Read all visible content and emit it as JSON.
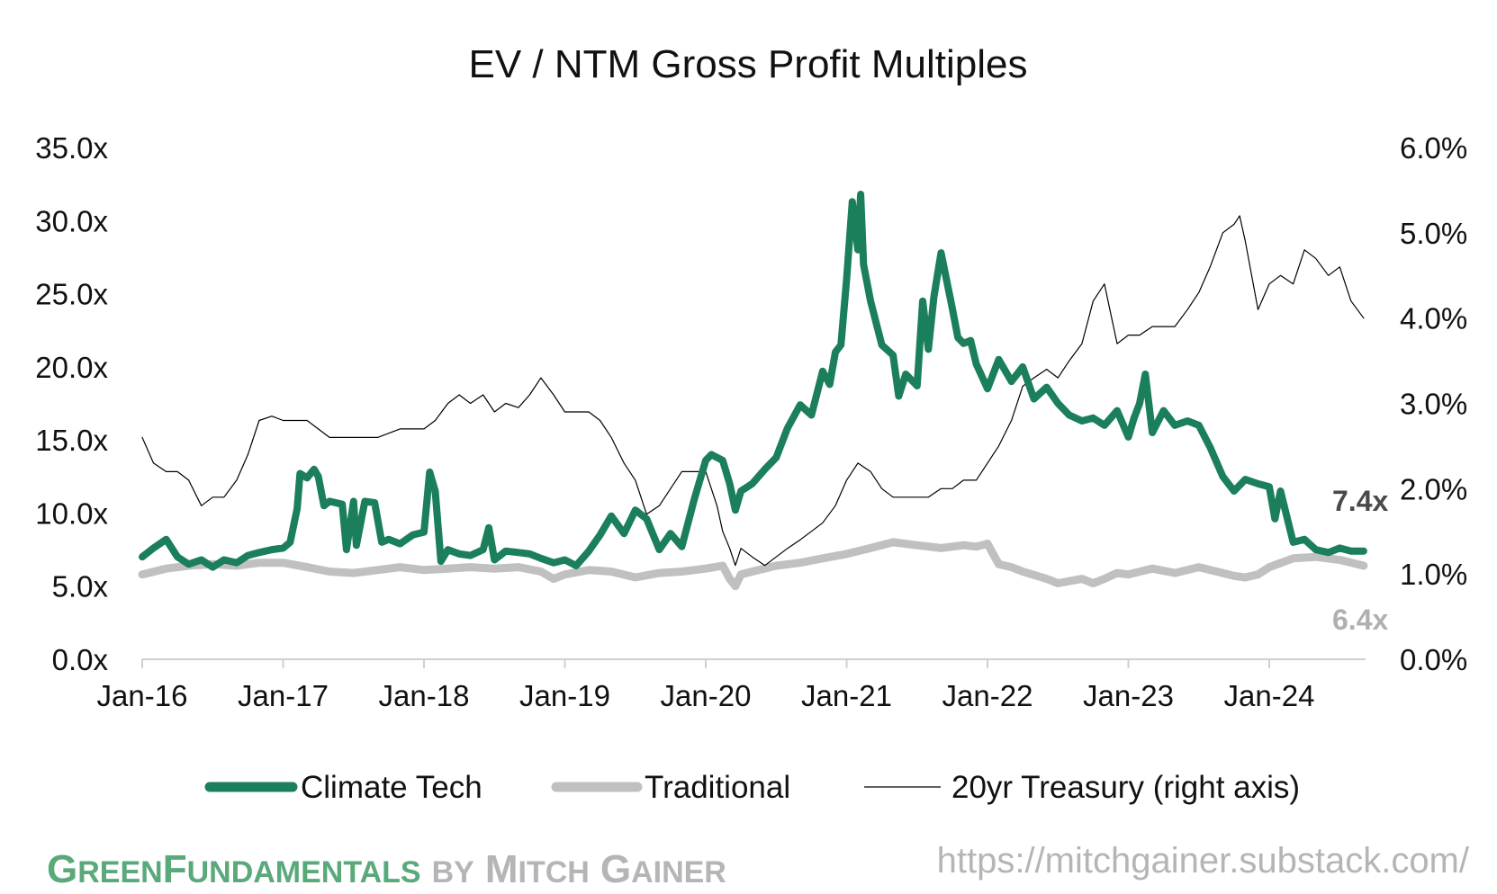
{
  "chart_data": {
    "type": "line",
    "title": "EV / NTM Gross Profit Multiples",
    "x_tick_labels": [
      "Jan-16",
      "Jan-17",
      "Jan-18",
      "Jan-19",
      "Jan-20",
      "Jan-21",
      "Jan-22",
      "Jan-23",
      "Jan-24"
    ],
    "x_range": [
      2016.0,
      2024.67
    ],
    "y_left": {
      "range": [
        0,
        35
      ],
      "tick_values": [
        0,
        5,
        10,
        15,
        20,
        25,
        30,
        35
      ],
      "tick_labels": [
        "0.0x",
        "5.0x",
        "10.0x",
        "15.0x",
        "20.0x",
        "25.0x",
        "30.0x",
        "35.0x"
      ]
    },
    "y_right": {
      "range": [
        0,
        6
      ],
      "tick_values": [
        0,
        1,
        2,
        3,
        4,
        5,
        6
      ],
      "tick_labels": [
        "0.0%",
        "1.0%",
        "2.0%",
        "3.0%",
        "4.0%",
        "5.0%",
        "6.0%"
      ]
    },
    "series": [
      {
        "name": "Climate Tech",
        "axis": "left",
        "color": "#1a7f5a",
        "end_label": "7.4x",
        "x": [
          2016.0,
          2016.08,
          2016.17,
          2016.25,
          2016.33,
          2016.42,
          2016.5,
          2016.58,
          2016.67,
          2016.75,
          2016.83,
          2016.92,
          2017.0,
          2017.05,
          2017.1,
          2017.12,
          2017.17,
          2017.22,
          2017.25,
          2017.29,
          2017.33,
          2017.42,
          2017.45,
          2017.5,
          2017.52,
          2017.58,
          2017.65,
          2017.7,
          2017.75,
          2017.83,
          2017.92,
          2018.0,
          2018.04,
          2018.08,
          2018.12,
          2018.17,
          2018.25,
          2018.33,
          2018.42,
          2018.46,
          2018.5,
          2018.58,
          2018.67,
          2018.75,
          2018.83,
          2018.92,
          2019.0,
          2019.08,
          2019.17,
          2019.25,
          2019.33,
          2019.42,
          2019.5,
          2019.58,
          2019.67,
          2019.75,
          2019.83,
          2019.92,
          2020.0,
          2020.04,
          2020.12,
          2020.17,
          2020.21,
          2020.25,
          2020.33,
          2020.42,
          2020.5,
          2020.58,
          2020.67,
          2020.75,
          2020.83,
          2020.88,
          2020.92,
          2020.96,
          2021.0,
          2021.04,
          2021.08,
          2021.1,
          2021.12,
          2021.17,
          2021.25,
          2021.33,
          2021.37,
          2021.42,
          2021.5,
          2021.54,
          2021.58,
          2021.62,
          2021.67,
          2021.75,
          2021.79,
          2021.83,
          2021.88,
          2021.92,
          2022.0,
          2022.08,
          2022.17,
          2022.25,
          2022.33,
          2022.42,
          2022.5,
          2022.58,
          2022.67,
          2022.75,
          2022.83,
          2022.92,
          2023.0,
          2023.04,
          2023.08,
          2023.12,
          2023.17,
          2023.25,
          2023.33,
          2023.42,
          2023.5,
          2023.58,
          2023.67,
          2023.75,
          2023.83,
          2023.92,
          2024.0,
          2024.04,
          2024.08,
          2024.17,
          2024.25,
          2024.33,
          2024.42,
          2024.5,
          2024.58,
          2024.67
        ],
        "y": [
          7.0,
          7.6,
          8.2,
          7.0,
          6.5,
          6.8,
          6.3,
          6.8,
          6.6,
          7.1,
          7.3,
          7.5,
          7.6,
          8.0,
          10.3,
          12.7,
          12.4,
          13.0,
          12.5,
          10.5,
          10.8,
          10.6,
          7.5,
          10.8,
          7.8,
          10.8,
          10.7,
          8.0,
          8.2,
          7.9,
          8.5,
          8.7,
          12.8,
          11.5,
          6.7,
          7.5,
          7.2,
          7.1,
          7.5,
          9.0,
          6.8,
          7.4,
          7.3,
          7.2,
          6.9,
          6.6,
          6.8,
          6.4,
          7.4,
          8.5,
          9.8,
          8.6,
          10.2,
          9.6,
          7.5,
          8.6,
          7.7,
          11.0,
          13.6,
          14.0,
          13.6,
          12.0,
          10.2,
          11.5,
          12.0,
          13.0,
          13.8,
          15.8,
          17.4,
          16.7,
          19.7,
          18.8,
          21.0,
          21.5,
          26.0,
          31.3,
          28.0,
          31.8,
          27.0,
          24.5,
          21.5,
          20.8,
          18.0,
          19.5,
          18.7,
          24.5,
          21.2,
          24.8,
          27.8,
          24.0,
          22.0,
          21.6,
          21.8,
          20.2,
          18.5,
          20.5,
          19.0,
          20.0,
          17.8,
          18.6,
          17.5,
          16.7,
          16.3,
          16.5,
          16.0,
          17.0,
          15.2,
          16.5,
          17.5,
          19.5,
          15.5,
          17.0,
          16.0,
          16.3,
          16.0,
          14.5,
          12.5,
          11.5,
          12.3,
          12.0,
          11.8,
          9.6,
          11.5,
          8.0,
          8.2,
          7.5,
          7.3,
          7.6,
          7.4,
          7.4
        ]
      },
      {
        "name": "Traditional",
        "axis": "left",
        "color": "#c0c0c0",
        "end_label": "6.4x",
        "x": [
          2016.0,
          2016.17,
          2016.33,
          2016.5,
          2016.67,
          2016.83,
          2017.0,
          2017.17,
          2017.33,
          2017.5,
          2017.67,
          2017.83,
          2018.0,
          2018.17,
          2018.33,
          2018.5,
          2018.67,
          2018.83,
          2018.92,
          2019.0,
          2019.17,
          2019.33,
          2019.5,
          2019.67,
          2019.83,
          2020.0,
          2020.12,
          2020.17,
          2020.21,
          2020.25,
          2020.33,
          2020.5,
          2020.67,
          2020.83,
          2021.0,
          2021.17,
          2021.33,
          2021.5,
          2021.67,
          2021.83,
          2021.92,
          2022.0,
          2022.08,
          2022.17,
          2022.25,
          2022.42,
          2022.5,
          2022.67,
          2022.75,
          2022.83,
          2022.92,
          2023.0,
          2023.17,
          2023.33,
          2023.5,
          2023.67,
          2023.75,
          2023.83,
          2023.92,
          2024.0,
          2024.17,
          2024.33,
          2024.5,
          2024.67
        ],
        "y": [
          5.8,
          6.2,
          6.4,
          6.5,
          6.4,
          6.6,
          6.6,
          6.3,
          6.0,
          5.9,
          6.1,
          6.3,
          6.1,
          6.2,
          6.3,
          6.2,
          6.3,
          6.0,
          5.5,
          5.8,
          6.1,
          6.0,
          5.6,
          5.9,
          6.0,
          6.2,
          6.4,
          5.5,
          5.0,
          5.8,
          6.0,
          6.4,
          6.6,
          6.9,
          7.2,
          7.6,
          8.0,
          7.8,
          7.6,
          7.8,
          7.7,
          7.9,
          6.5,
          6.3,
          6.0,
          5.5,
          5.2,
          5.5,
          5.2,
          5.5,
          5.9,
          5.8,
          6.2,
          5.9,
          6.3,
          5.9,
          5.7,
          5.6,
          5.8,
          6.3,
          6.9,
          7.0,
          6.8,
          6.4
        ]
      },
      {
        "name": "20yr Treasury (right axis)",
        "axis": "right",
        "color": "#000000",
        "x": [
          2016.0,
          2016.08,
          2016.17,
          2016.25,
          2016.33,
          2016.42,
          2016.5,
          2016.58,
          2016.67,
          2016.75,
          2016.83,
          2016.92,
          2017.0,
          2017.17,
          2017.33,
          2017.5,
          2017.67,
          2017.83,
          2018.0,
          2018.08,
          2018.17,
          2018.25,
          2018.33,
          2018.42,
          2018.5,
          2018.58,
          2018.67,
          2018.75,
          2018.83,
          2018.92,
          2019.0,
          2019.08,
          2019.17,
          2019.25,
          2019.33,
          2019.42,
          2019.5,
          2019.58,
          2019.67,
          2019.75,
          2019.83,
          2019.92,
          2020.0,
          2020.08,
          2020.12,
          2020.17,
          2020.21,
          2020.25,
          2020.33,
          2020.42,
          2020.5,
          2020.58,
          2020.67,
          2020.75,
          2020.83,
          2020.92,
          2021.0,
          2021.08,
          2021.17,
          2021.25,
          2021.33,
          2021.42,
          2021.5,
          2021.58,
          2021.67,
          2021.75,
          2021.83,
          2021.92,
          2022.0,
          2022.08,
          2022.17,
          2022.25,
          2022.33,
          2022.42,
          2022.5,
          2022.58,
          2022.67,
          2022.75,
          2022.83,
          2022.92,
          2023.0,
          2023.08,
          2023.17,
          2023.25,
          2023.33,
          2023.42,
          2023.5,
          2023.58,
          2023.67,
          2023.75,
          2023.79,
          2023.83,
          2023.92,
          2024.0,
          2024.08,
          2024.17,
          2024.25,
          2024.33,
          2024.42,
          2024.5,
          2024.58,
          2024.67
        ],
        "y": [
          2.6,
          2.3,
          2.2,
          2.2,
          2.1,
          1.8,
          1.9,
          1.9,
          2.1,
          2.4,
          2.8,
          2.85,
          2.8,
          2.8,
          2.6,
          2.6,
          2.6,
          2.7,
          2.7,
          2.8,
          3.0,
          3.1,
          3.0,
          3.1,
          2.9,
          3.0,
          2.95,
          3.1,
          3.3,
          3.1,
          2.9,
          2.9,
          2.9,
          2.8,
          2.6,
          2.3,
          2.1,
          1.7,
          1.8,
          2.0,
          2.2,
          2.2,
          2.2,
          1.8,
          1.5,
          1.3,
          1.1,
          1.3,
          1.2,
          1.1,
          1.2,
          1.3,
          1.4,
          1.5,
          1.6,
          1.8,
          2.1,
          2.3,
          2.2,
          2.0,
          1.9,
          1.9,
          1.9,
          1.9,
          2.0,
          2.0,
          2.1,
          2.1,
          2.3,
          2.5,
          2.8,
          3.2,
          3.3,
          3.4,
          3.3,
          3.5,
          3.7,
          4.2,
          4.4,
          3.7,
          3.8,
          3.8,
          3.9,
          3.9,
          3.9,
          4.1,
          4.3,
          4.6,
          5.0,
          5.1,
          5.2,
          4.9,
          4.1,
          4.4,
          4.5,
          4.4,
          4.8,
          4.7,
          4.5,
          4.6,
          4.2,
          4.0
        ]
      }
    ],
    "legend": {
      "placement": "bottom"
    }
  },
  "branding": {
    "green_initial_1": "G",
    "green_rest_1": "REEN",
    "green_initial_2": "F",
    "green_rest_2": "UNDAMENTALS",
    "by": "BY",
    "gray_initial_1": "M",
    "gray_rest_1": "ITCH",
    "gray_initial_2": "G",
    "gray_rest_2": "AINER",
    "green_color": "#5aa97a",
    "gray_color": "#b5b5b5",
    "url": "https://mitchgainer.substack.com/"
  }
}
